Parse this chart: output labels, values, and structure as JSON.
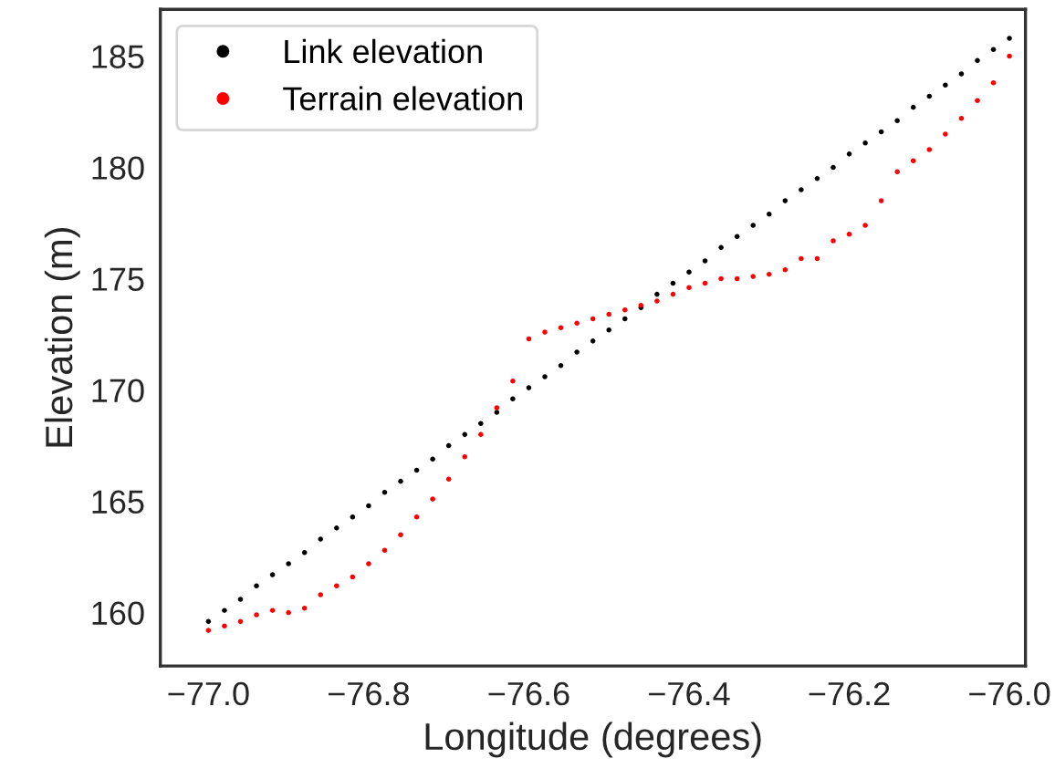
{
  "chart_data": {
    "type": "scatter",
    "xlabel": "Longitude (degrees)",
    "ylabel": "Elevation (m)",
    "x": [
      -77.0,
      -76.98,
      -76.96,
      -76.94,
      -76.92,
      -76.9,
      -76.88,
      -76.86,
      -76.84,
      -76.82,
      -76.8,
      -76.78,
      -76.76,
      -76.74,
      -76.72,
      -76.7,
      -76.68,
      -76.66,
      -76.64,
      -76.62,
      -76.6,
      -76.58,
      -76.56,
      -76.54,
      -76.52,
      -76.5,
      -76.48,
      -76.46,
      -76.44,
      -76.42,
      -76.4,
      -76.38,
      -76.36,
      -76.34,
      -76.32,
      -76.3,
      -76.28,
      -76.26,
      -76.24,
      -76.22,
      -76.2,
      -76.18,
      -76.16,
      -76.14,
      -76.12,
      -76.1,
      -76.08,
      -76.06,
      -76.04,
      -76.02,
      -76.0
    ],
    "series": [
      {
        "name": "Link elevation",
        "color": "#000000",
        "values": [
          159.6,
          160.1,
          160.6,
          161.2,
          161.7,
          162.2,
          162.7,
          163.3,
          163.8,
          164.3,
          164.8,
          165.4,
          165.9,
          166.4,
          166.9,
          167.5,
          168.0,
          168.5,
          169.0,
          169.6,
          170.1,
          170.6,
          171.1,
          171.7,
          172.2,
          172.7,
          173.2,
          173.7,
          174.3,
          174.8,
          175.3,
          175.8,
          176.4,
          176.9,
          177.4,
          177.9,
          178.5,
          179.0,
          179.5,
          180.0,
          180.6,
          181.1,
          181.6,
          182.1,
          182.7,
          183.2,
          183.7,
          184.2,
          184.8,
          185.3,
          185.8
        ]
      },
      {
        "name": "Terrain elevation",
        "color": "#ff0000",
        "values": [
          159.2,
          159.4,
          159.6,
          159.9,
          160.1,
          160.0,
          160.2,
          160.8,
          161.2,
          161.6,
          162.2,
          162.8,
          163.5,
          164.3,
          165.1,
          166.0,
          167.0,
          168.0,
          169.2,
          170.4,
          172.3,
          172.6,
          172.8,
          173.0,
          173.2,
          173.4,
          173.6,
          173.8,
          174.0,
          174.3,
          174.6,
          174.8,
          175.0,
          175.0,
          175.1,
          175.2,
          175.4,
          175.9,
          175.9,
          176.7,
          177.0,
          177.4,
          178.5,
          179.8,
          180.3,
          180.8,
          181.5,
          182.2,
          183.0,
          183.8,
          185.0
        ]
      }
    ],
    "xlim": [
      -77.06,
      -75.98
    ],
    "ylim": [
      157.6,
      187.1
    ],
    "xticks": [
      {
        "value": -77.0,
        "label": "−77.0"
      },
      {
        "value": -76.8,
        "label": "−76.8"
      },
      {
        "value": -76.6,
        "label": "−76.6"
      },
      {
        "value": -76.4,
        "label": "−76.4"
      },
      {
        "value": -76.2,
        "label": "−76.2"
      },
      {
        "value": -76.0,
        "label": "−76.0"
      }
    ],
    "yticks": [
      160,
      165,
      170,
      175,
      180,
      185
    ],
    "grid": false,
    "legend": "top left",
    "marker": "circle"
  }
}
